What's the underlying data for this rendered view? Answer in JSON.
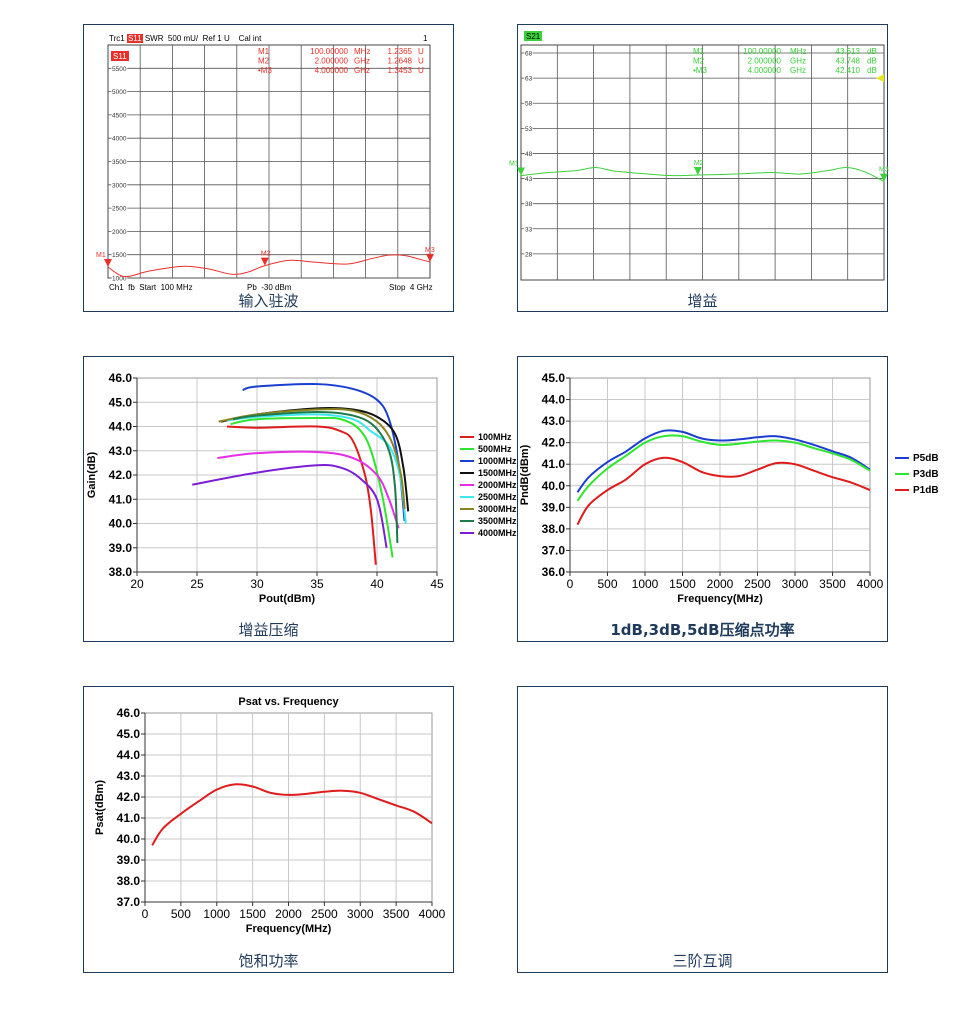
{
  "captions": {
    "s11": "输入驻波",
    "s21": "增益",
    "compression": "增益压缩",
    "pnd": "1dB,3dB,5dB压缩点功率",
    "psat": "饱和功率",
    "imd": "三阶互调"
  },
  "chart_data": [
    {
      "id": "s11",
      "type": "line",
      "title": "",
      "header": {
        "trace": "Trc1",
        "param": "S11",
        "format": "SWR  500 mU/  Ref 1 U",
        "cal": "Cal int",
        "channel_num": "1"
      },
      "footer": {
        "left": "Ch1  fb  Start  100 MHz",
        "mid": "Pb  -30 dBm",
        "right": "Stop  4 GHz"
      },
      "badge": "S11",
      "color": "#e8302a",
      "xlim": [
        100,
        4000
      ],
      "ylim": [
        1000,
        6000
      ],
      "yticks": [
        "1000",
        "1500",
        "2000",
        "2500",
        "3000",
        "3500",
        "4000",
        "4500",
        "5000",
        "5500"
      ],
      "ytick_values": [
        1000,
        1500,
        2000,
        2500,
        3000,
        3500,
        4000,
        4500,
        5000,
        5500
      ],
      "markers": [
        {
          "name": "M1",
          "freq": "100.00000",
          "unit": "MHz",
          "value": "1.2365",
          "vunit": "U",
          "x": 100,
          "y": 1236
        },
        {
          "name": "M2",
          "freq": "2.000000",
          "unit": "GHz",
          "value": "1.2648",
          "vunit": "U",
          "x": 2000,
          "y": 1265
        },
        {
          "name": "•M3",
          "freq": "4.000000",
          "unit": "GHz",
          "value": "1.3453",
          "vunit": "U",
          "x": 4000,
          "y": 1345
        }
      ],
      "series": [
        {
          "name": "S11",
          "x": [
            100,
            300,
            600,
            1000,
            1300,
            1600,
            1800,
            2000,
            2300,
            2600,
            3000,
            3300,
            3500,
            3700,
            3900,
            4000
          ],
          "y": [
            1236,
            1030,
            1150,
            1250,
            1200,
            1080,
            1130,
            1265,
            1380,
            1340,
            1300,
            1420,
            1490,
            1480,
            1390,
            1345
          ]
        }
      ]
    },
    {
      "id": "s21",
      "type": "line",
      "badge": "S21",
      "color": "#3ad13a",
      "xlim": [
        100,
        4000
      ],
      "ylim": [
        22.8,
        69.6
      ],
      "yticks": [
        "68",
        "63",
        "58",
        "53",
        "48",
        "43",
        "38",
        "33",
        "28"
      ],
      "ytick_values": [
        68,
        63,
        58,
        53,
        48,
        43,
        38,
        33,
        28
      ],
      "markers": [
        {
          "name": "M1",
          "freq": "100.00000",
          "unit": "MHz",
          "value": "43.613",
          "vunit": "dB",
          "x": 100,
          "y": 43.6
        },
        {
          "name": "M2",
          "freq": "2.000000",
          "unit": "GHz",
          "value": "43.748",
          "vunit": "dB",
          "x": 2000,
          "y": 43.7
        },
        {
          "name": "•M3",
          "freq": "4.000000",
          "unit": "GHz",
          "value": "42.410",
          "vunit": "dB",
          "x": 4000,
          "y": 42.4
        }
      ],
      "series": [
        {
          "name": "S21",
          "x": [
            100,
            400,
            700,
            900,
            1100,
            1400,
            1700,
            2000,
            2400,
            2800,
            3100,
            3400,
            3600,
            3800,
            4000
          ],
          "y": [
            43.6,
            44.2,
            44.6,
            45.2,
            44.5,
            44.0,
            43.6,
            43.7,
            43.9,
            44.2,
            43.9,
            44.6,
            45.2,
            44.3,
            42.4
          ]
        }
      ]
    },
    {
      "id": "compression",
      "type": "line",
      "xlabel": "Pout(dBm)",
      "ylabel": "Gain(dB)",
      "xlim": [
        20,
        45
      ],
      "ylim": [
        38,
        46
      ],
      "xticks": [
        "20",
        "25",
        "30",
        "35",
        "40",
        "45"
      ],
      "xtick_values": [
        20,
        25,
        30,
        35,
        40,
        45
      ],
      "yticks": [
        "38.0",
        "39.0",
        "40.0",
        "41.0",
        "42.0",
        "43.0",
        "44.0",
        "45.0",
        "46.0"
      ],
      "ytick_values": [
        38,
        39,
        40,
        41,
        42,
        43,
        44,
        45,
        46
      ],
      "grid": true,
      "legend": "right",
      "series": [
        {
          "name": "100MHz",
          "color": "#e01b1b",
          "x": [
            27.5,
            30,
            35,
            37,
            38,
            39,
            39.5,
            39.9
          ],
          "y": [
            44.0,
            43.95,
            44.0,
            43.8,
            43.4,
            42.0,
            40.5,
            38.3
          ]
        },
        {
          "name": "500MHz",
          "color": "#2ee62e",
          "x": [
            27.8,
            30,
            35,
            37,
            38.5,
            39.5,
            40.5,
            41.3
          ],
          "y": [
            44.1,
            44.3,
            44.35,
            44.3,
            43.9,
            43.0,
            41.0,
            38.6
          ]
        },
        {
          "name": "1000MHz",
          "color": "#1a3fd0",
          "x": [
            28.8,
            30,
            35,
            38,
            40,
            41,
            41.8,
            42.3
          ],
          "y": [
            45.5,
            45.65,
            45.75,
            45.55,
            45.1,
            44.3,
            42.5,
            40.1
          ]
        },
        {
          "name": "1500MHz",
          "color": "#111111",
          "x": [
            27,
            30,
            35,
            38,
            40,
            41.5,
            42.2,
            42.6
          ],
          "y": [
            44.2,
            44.5,
            44.75,
            44.7,
            44.4,
            43.7,
            42.3,
            40.5
          ]
        },
        {
          "name": "2000MHz",
          "color": "#e62ee6",
          "x": [
            26.7,
            30,
            35,
            38,
            40,
            41,
            41.8
          ],
          "y": [
            42.7,
            42.9,
            42.95,
            42.7,
            42.0,
            41.0,
            39.8
          ]
        },
        {
          "name": "2500MHz",
          "color": "#3ce8f0",
          "x": [
            27.5,
            30,
            35,
            38,
            39.5,
            41,
            41.9,
            42.4
          ],
          "y": [
            44.25,
            44.4,
            44.5,
            44.3,
            43.8,
            43.2,
            42.0,
            40.0
          ]
        },
        {
          "name": "3000MHz",
          "color": "#8a8420",
          "x": [
            26.8,
            30,
            35,
            38,
            40,
            41.2,
            42,
            42.3
          ],
          "y": [
            44.2,
            44.5,
            44.7,
            44.65,
            44.2,
            43.4,
            42.0,
            40.6
          ]
        },
        {
          "name": "3500MHz",
          "color": "#1e7a4a",
          "x": [
            28,
            30,
            35,
            38,
            39.8,
            41,
            41.5,
            41.7
          ],
          "y": [
            44.3,
            44.45,
            44.6,
            44.45,
            44.0,
            43.0,
            41.5,
            39.2
          ]
        },
        {
          "name": "4000MHz",
          "color": "#7a1fd6",
          "x": [
            24.6,
            30,
            35,
            37,
            38.5,
            40,
            40.8
          ],
          "y": [
            41.6,
            42.1,
            42.4,
            42.3,
            41.9,
            41.0,
            39.0
          ]
        }
      ]
    },
    {
      "id": "pnd",
      "type": "line",
      "xlabel": "Frequency(MHz)",
      "ylabel": "PndB(dBm)",
      "xlim": [
        0,
        4000
      ],
      "ylim": [
        36,
        45
      ],
      "xticks": [
        "0",
        "500",
        "1000",
        "1500",
        "2000",
        "2500",
        "3000",
        "3500",
        "4000"
      ],
      "xtick_values": [
        0,
        500,
        1000,
        1500,
        2000,
        2500,
        3000,
        3500,
        4000
      ],
      "yticks": [
        "36.0",
        "37.0",
        "38.0",
        "39.0",
        "40.0",
        "41.0",
        "42.0",
        "43.0",
        "44.0",
        "45.0"
      ],
      "ytick_values": [
        36,
        37,
        38,
        39,
        40,
        41,
        42,
        43,
        44,
        45
      ],
      "grid": true,
      "legend": "right",
      "series": [
        {
          "name": "P5dB",
          "color": "#1a3fd0",
          "x": [
            100,
            250,
            500,
            750,
            1000,
            1250,
            1500,
            1750,
            2000,
            2250,
            2500,
            2750,
            3000,
            3250,
            3500,
            3750,
            4000
          ],
          "y": [
            39.7,
            40.4,
            41.1,
            41.6,
            42.2,
            42.55,
            42.5,
            42.2,
            42.1,
            42.15,
            42.25,
            42.3,
            42.15,
            41.9,
            41.6,
            41.3,
            40.75
          ]
        },
        {
          "name": "P3dB",
          "color": "#2ee62e",
          "x": [
            100,
            250,
            500,
            750,
            1000,
            1250,
            1500,
            1750,
            2000,
            2250,
            2500,
            2750,
            3000,
            3250,
            3500,
            3750,
            4000
          ],
          "y": [
            39.3,
            40.0,
            40.8,
            41.4,
            42.0,
            42.3,
            42.3,
            42.05,
            41.9,
            41.95,
            42.05,
            42.1,
            42.0,
            41.75,
            41.5,
            41.2,
            40.7
          ]
        },
        {
          "name": "P1dB",
          "color": "#e01b1b",
          "x": [
            100,
            250,
            500,
            750,
            1000,
            1250,
            1500,
            1750,
            2000,
            2250,
            2500,
            2750,
            3000,
            3250,
            3500,
            3750,
            4000
          ],
          "y": [
            38.2,
            39.1,
            39.8,
            40.3,
            41.0,
            41.3,
            41.1,
            40.65,
            40.45,
            40.45,
            40.75,
            41.05,
            41.0,
            40.7,
            40.4,
            40.15,
            39.8
          ]
        }
      ]
    },
    {
      "id": "psat",
      "type": "line",
      "title": "Psat vs. Frequency",
      "xlabel": "Frequency(MHz)",
      "ylabel": "Psat(dBm)",
      "xlim": [
        0,
        4000
      ],
      "ylim": [
        37,
        46
      ],
      "xticks": [
        "0",
        "500",
        "1000",
        "1500",
        "2000",
        "2500",
        "3000",
        "3500",
        "4000"
      ],
      "xtick_values": [
        0,
        500,
        1000,
        1500,
        2000,
        2500,
        3000,
        3500,
        4000
      ],
      "yticks": [
        "37.0",
        "38.0",
        "39.0",
        "40.0",
        "41.0",
        "42.0",
        "43.0",
        "44.0",
        "45.0",
        "46.0"
      ],
      "ytick_values": [
        37,
        38,
        39,
        40,
        41,
        42,
        43,
        44,
        45,
        46
      ],
      "grid": true,
      "series": [
        {
          "name": "Psat",
          "color": "#e01b1b",
          "x": [
            100,
            250,
            500,
            750,
            1000,
            1250,
            1500,
            1750,
            2000,
            2250,
            2500,
            2750,
            3000,
            3250,
            3500,
            3750,
            4000
          ],
          "y": [
            39.7,
            40.5,
            41.2,
            41.8,
            42.35,
            42.6,
            42.5,
            42.2,
            42.1,
            42.15,
            42.25,
            42.3,
            42.2,
            41.9,
            41.6,
            41.3,
            40.75
          ]
        }
      ]
    }
  ]
}
